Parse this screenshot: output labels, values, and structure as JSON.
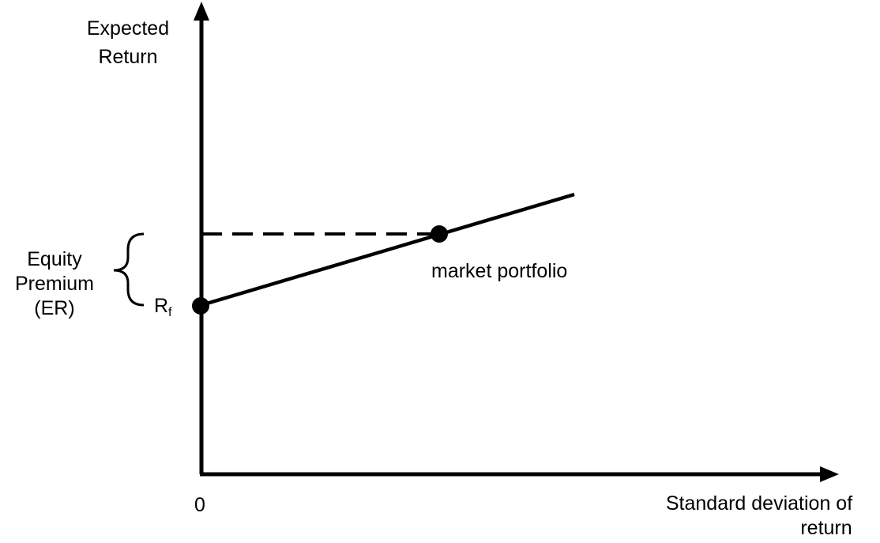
{
  "colors": {
    "ink": "#000000",
    "background": "#ffffff"
  },
  "y_axis": {
    "label_line1": "Expected",
    "label_line2": "Return"
  },
  "x_axis": {
    "origin_label": "0",
    "label_line1": "Standard deviation of",
    "label_line2": "return"
  },
  "equity_premium": {
    "line1": "Equity",
    "line2": "Premium",
    "line3": "(ER)"
  },
  "risk_free": {
    "label": "R",
    "subscript": "f"
  },
  "market_portfolio": {
    "label": "market portfolio"
  }
}
